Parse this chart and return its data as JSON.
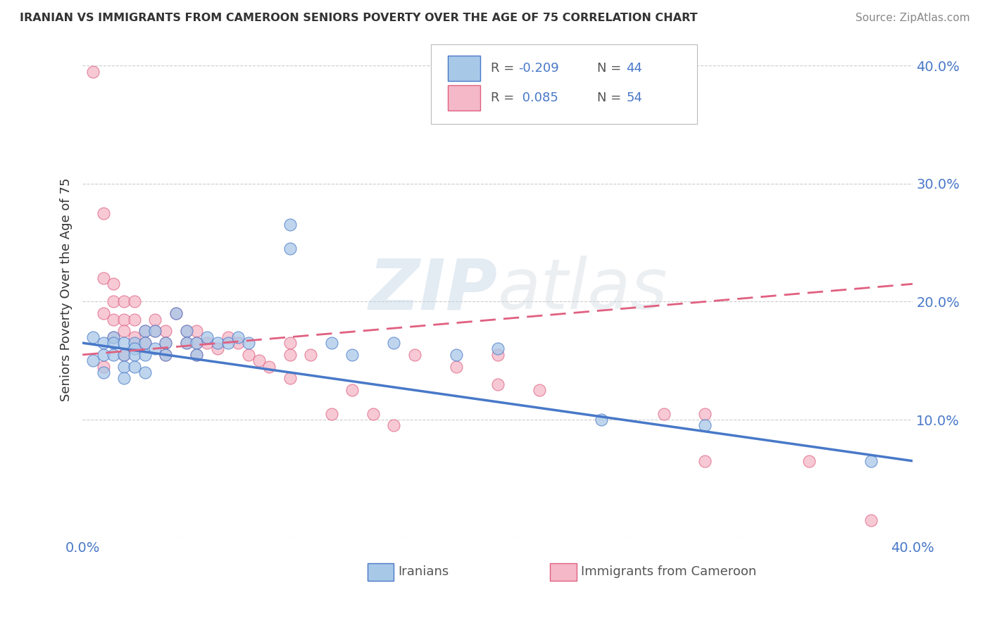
{
  "title": "IRANIAN VS IMMIGRANTS FROM CAMEROON SENIORS POVERTY OVER THE AGE OF 75 CORRELATION CHART",
  "source": "Source: ZipAtlas.com",
  "ylabel": "Seniors Poverty Over the Age of 75",
  "xlim": [
    0.0,
    0.4
  ],
  "ylim": [
    0.0,
    0.42
  ],
  "y_ticks": [
    0.0,
    0.1,
    0.2,
    0.3,
    0.4
  ],
  "y_tick_labels_right": [
    "",
    "10.0%",
    "20.0%",
    "30.0%",
    "40.0%"
  ],
  "x_ticks": [
    0.0,
    0.1,
    0.2,
    0.3,
    0.4
  ],
  "x_tick_labels": [
    "0.0%",
    "",
    "",
    "",
    "40.0%"
  ],
  "color_iranian": "#a8c8e8",
  "color_cameroon": "#f4b8c8",
  "line_color_iranian": "#4878c8",
  "line_color_cameroon": "#e06080",
  "background_color": "#ffffff",
  "grid_color": "#cccccc",
  "title_color": "#333333",
  "source_color": "#888888",
  "watermark_color": "#c8d8e8",
  "iranians_x": [
    0.005,
    0.005,
    0.01,
    0.01,
    0.01,
    0.015,
    0.015,
    0.015,
    0.02,
    0.02,
    0.02,
    0.02,
    0.025,
    0.025,
    0.025,
    0.025,
    0.03,
    0.03,
    0.03,
    0.03,
    0.035,
    0.035,
    0.04,
    0.04,
    0.045,
    0.05,
    0.05,
    0.055,
    0.055,
    0.06,
    0.065,
    0.07,
    0.075,
    0.08,
    0.1,
    0.1,
    0.12,
    0.13,
    0.15,
    0.18,
    0.2,
    0.25,
    0.3,
    0.38
  ],
  "iranians_y": [
    0.17,
    0.15,
    0.165,
    0.155,
    0.14,
    0.17,
    0.165,
    0.155,
    0.165,
    0.155,
    0.145,
    0.135,
    0.165,
    0.16,
    0.155,
    0.145,
    0.175,
    0.165,
    0.155,
    0.14,
    0.175,
    0.16,
    0.165,
    0.155,
    0.19,
    0.175,
    0.165,
    0.165,
    0.155,
    0.17,
    0.165,
    0.165,
    0.17,
    0.165,
    0.265,
    0.245,
    0.165,
    0.155,
    0.165,
    0.155,
    0.16,
    0.1,
    0.095,
    0.065
  ],
  "cameroon_x": [
    0.005,
    0.01,
    0.01,
    0.01,
    0.01,
    0.015,
    0.015,
    0.015,
    0.015,
    0.02,
    0.02,
    0.02,
    0.02,
    0.025,
    0.025,
    0.025,
    0.03,
    0.03,
    0.035,
    0.035,
    0.04,
    0.04,
    0.04,
    0.045,
    0.05,
    0.05,
    0.055,
    0.055,
    0.055,
    0.06,
    0.065,
    0.07,
    0.075,
    0.08,
    0.085,
    0.09,
    0.1,
    0.1,
    0.1,
    0.11,
    0.12,
    0.13,
    0.14,
    0.15,
    0.16,
    0.18,
    0.2,
    0.2,
    0.22,
    0.28,
    0.3,
    0.3,
    0.35,
    0.38
  ],
  "cameroon_y": [
    0.395,
    0.275,
    0.22,
    0.19,
    0.145,
    0.215,
    0.2,
    0.185,
    0.17,
    0.2,
    0.185,
    0.175,
    0.155,
    0.2,
    0.185,
    0.17,
    0.175,
    0.165,
    0.185,
    0.175,
    0.175,
    0.165,
    0.155,
    0.19,
    0.175,
    0.165,
    0.175,
    0.165,
    0.155,
    0.165,
    0.16,
    0.17,
    0.165,
    0.155,
    0.15,
    0.145,
    0.165,
    0.155,
    0.135,
    0.155,
    0.105,
    0.125,
    0.105,
    0.095,
    0.155,
    0.145,
    0.155,
    0.13,
    0.125,
    0.105,
    0.105,
    0.065,
    0.065,
    0.015
  ],
  "iranian_line_x": [
    0.0,
    0.4
  ],
  "iranian_line_y": [
    0.165,
    0.065
  ],
  "cameroon_line_x": [
    0.0,
    0.4
  ],
  "cameroon_line_y": [
    0.155,
    0.215
  ]
}
